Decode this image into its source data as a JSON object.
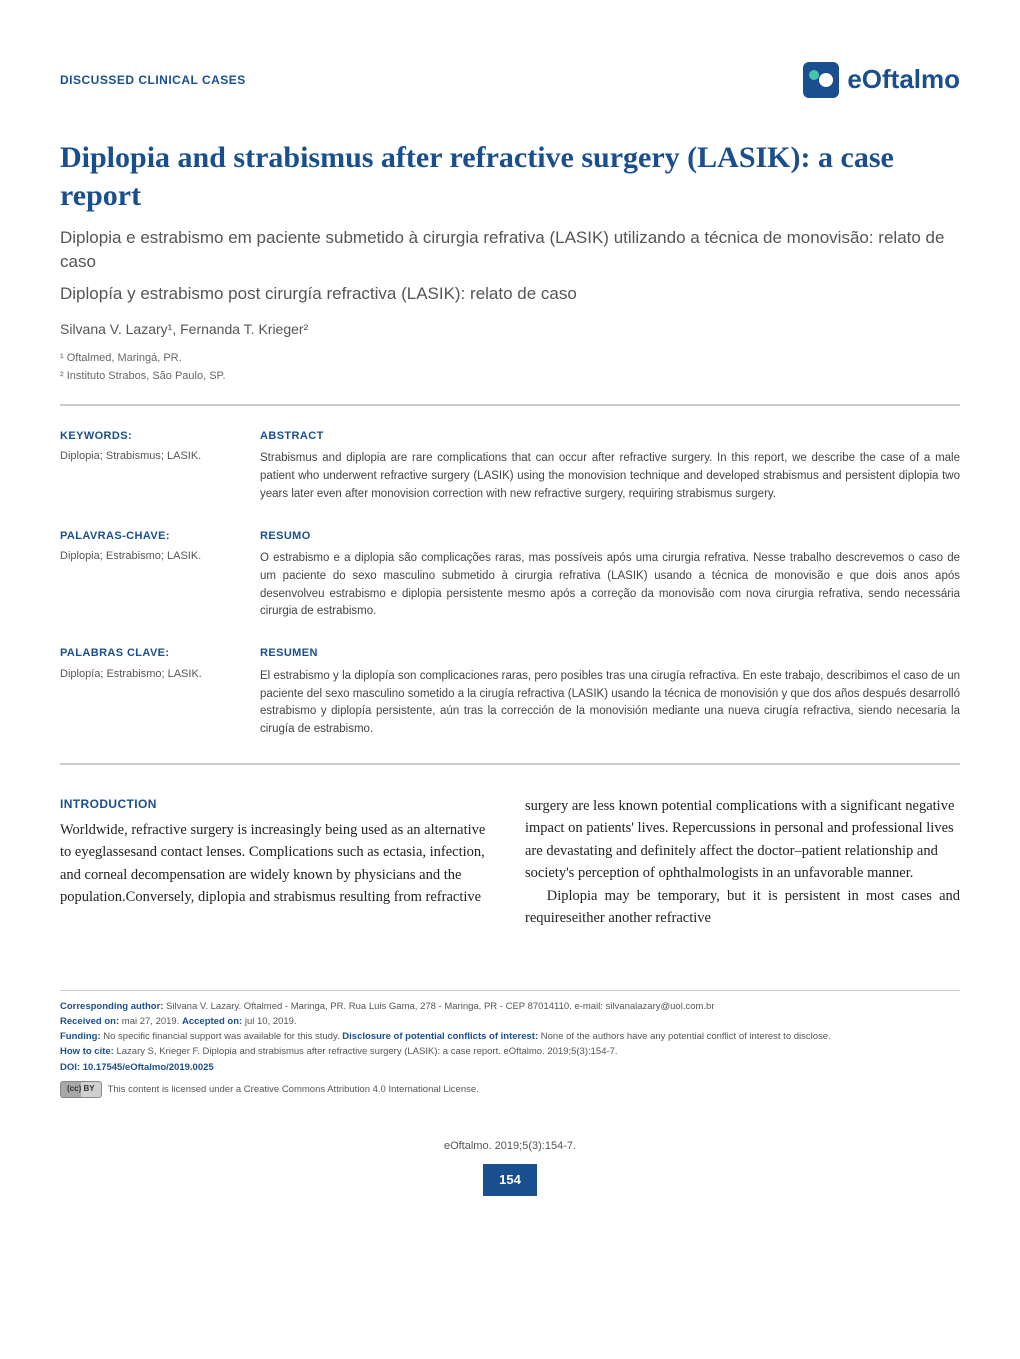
{
  "header": {
    "section_label": "DISCUSSED CLINICAL CASES",
    "logo_text": "eOftalmo"
  },
  "titles": {
    "main": "Diplopia and strabismus after refractive surgery (LASIK): a case report",
    "pt": "Diplopia e estrabismo em paciente submetido à cirurgia refrativa (LASIK) utilizando a técnica de monovisão: relato de caso",
    "es": "Diplopía y estrabismo post cirurgía refractiva (LASIK): relato de caso"
  },
  "authors": "Silvana V. Lazary¹, Fernanda T. Krieger²",
  "affiliations": [
    "¹ Oftalmed, Maringá, PR.",
    "² Instituto Strabos, São Paulo, SP."
  ],
  "abstracts": [
    {
      "kw_label": "KEYWORDS:",
      "kw_value": "Diplopia; Strabismus; LASIK.",
      "ab_label": "ABSTRACT",
      "ab_text": "Strabismus and diplopia are rare complications that can occur after refractive surgery. In this report, we describe the case of a male patient who underwent refractive surgery (LASIK) using the monovision technique and developed strabismus and persistent diplopia two years later even after monovision correction with new refractive surgery, requiring strabismus surgery."
    },
    {
      "kw_label": "PALAVRAS-CHAVE:",
      "kw_value": "Diplopia; Estrabismo; LASIK.",
      "ab_label": "RESUMO",
      "ab_text": "O estrabismo e a diplopia são complicações raras, mas possíveis após uma cirurgia refrativa. Nesse trabalho descrevemos o caso de um paciente do sexo masculino submetido à cirurgia refrativa (LASIK) usando a técnica de monovisão e que dois anos após desenvolveu estrabismo e diplopia persistente mesmo após a correção da monovisão com nova cirurgia refrativa, sendo necessária cirurgia de estrabismo."
    },
    {
      "kw_label": "PALABRAS CLAVE:",
      "kw_value": "Diplopía; Estrabismo; LASIK.",
      "ab_label": "RESUMEN",
      "ab_text": "El estrabismo y la diplopía son complicaciones raras, pero posibles tras una cirugía refractiva. En este trabajo, describimos el caso de un paciente del sexo masculino sometido a la cirugía refractiva (LASIK) usando la técnica de monovisión y que dos años después desarrolló estrabismo y diplopía persistente, aún tras la corrección de la monovisión mediante una nueva cirugía refractiva, siendo necesaria la cirugía de estrabismo."
    }
  ],
  "intro": {
    "heading": "INTRODUCTION",
    "p1": "Worldwide, refractive surgery is increasingly being used as an alternative to eyeglassesand contact lenses. Complications such as ectasia, infection, and corneal decompensation are widely known by physicians and the population.Conversely, diplopia and strabismus resulting from refractive surgery are less known po",
    "p2": "tential complications with a significant negative impact on patients' lives. Repercussions in personal and professional lives are devastating and definitely affect the doctor–patient relationship and society's perception of ophthalmologists in an unfavorable manner.",
    "p3": "Diplopia may be temporary, but it is persistent in most cases and requireseither another refractive"
  },
  "footer": {
    "corresponding_label": "Corresponding author:",
    "corresponding": " Silvana V. Lazary. Oftalmed - Maringa, PR. Rua Luis Gama, 278 - Maringa, PR - CEP 87014110. e-mail: silvanalazary@uol.com.br",
    "received_label": "Received on:",
    "received": " mai 27, 2019. ",
    "accepted_label": "Accepted on:",
    "accepted": " jul 10, 2019.",
    "funding_label": "Funding:",
    "funding": " No specific financial support was available for this study. ",
    "disclosure_label": "Disclosure of potential conflicts of interest:",
    "disclosure": " None of the authors have any potential conflict of interest to disclose.",
    "cite_label": "How to cite:",
    "cite": " Lazary S, Krieger F. Diplopia and strabismus after refractive surgery (LASIK): a case report. eOftalmo. 2019;5(3):154-7.",
    "doi_label": "DOI: ",
    "doi": "10.17545/eOftalmo/2019.0025",
    "cc_badge": "(cc) BY",
    "cc_text": " This content is licensed under a Creative Commons Attribution 4.0 International License."
  },
  "pagefoot": {
    "citation": "eOftalmo. 2019;5(3):154-7.",
    "page_number": "154"
  },
  "colors": {
    "primary": "#1a4f8f",
    "accent": "#44c8a8",
    "text": "#333333",
    "muted": "#555555",
    "divider": "#cccccc"
  }
}
